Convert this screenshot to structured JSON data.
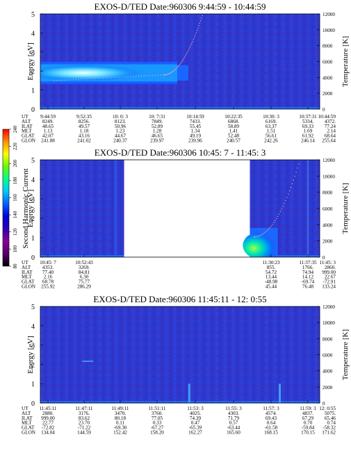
{
  "colorbar": {
    "label": "Second Harmonic Current",
    "ticks": [
      "240",
      "220",
      "200",
      "180",
      "160",
      "140",
      "120",
      "100",
      "80"
    ],
    "colors": [
      "#000000",
      "#55006a",
      "#8a0097",
      "#2a00b8",
      "#0000d8",
      "#0060ff",
      "#00c8ff",
      "#00ff90",
      "#60ff00",
      "#ffff00",
      "#ff9000",
      "#ff0000"
    ]
  },
  "chart_data": [
    {
      "type": "heatmap",
      "title": "EXOS-D/TED   Date:960306  9:44:59 - 10:44:59",
      "ylabel": "Energy [eV]",
      "y2label": "Temperature [K]",
      "ylim": [
        0,
        5
      ],
      "yticks": [
        "0",
        "1",
        "2",
        "3",
        "4",
        "5"
      ],
      "y2lim": [
        0,
        12000
      ],
      "y2ticks": [
        "0",
        "2000",
        "4000",
        "6000",
        "8000",
        "10000",
        "12000"
      ],
      "features": {
        "band_center_ev": 1.9,
        "band_half_width_ev": 0.45,
        "band_end_fraction": 0.49,
        "band_peak_end_fraction": 0.31,
        "temperature_rise_from": 0.44
      },
      "rows": [
        {
          "label": "UT",
          "values": [
            "9:44:59",
            "9:52:35",
            "10: 0: 3",
            "10: 7:31",
            "10:14:59",
            "10:22:35",
            "10:30: 3",
            "10:37:31",
            "10:44:59"
          ]
        },
        {
          "label": "ALT",
          "values": [
            "8249.",
            "8256.",
            "8123.",
            "7849.",
            "7433.",
            "6868.",
            "6169.",
            "5334.",
            "4372."
          ]
        },
        {
          "label": "ILAT",
          "values": [
            "48.65",
            "49.57",
            "50.96",
            "52.89",
            "55.45",
            "58.89",
            "63.37",
            "69.33",
            "77.24"
          ]
        },
        {
          "label": "MLT",
          "values": [
            "1.13",
            "1.18",
            "1.23",
            "1.28",
            "1.34",
            "1.41",
            "1.51",
            "1.69",
            "2.14"
          ]
        },
        {
          "label": "GLAT",
          "values": [
            "42.07",
            "43.16",
            "44.67",
            "46.65",
            "49.19",
            "52.48",
            "56.61",
            "61.92",
            "68.64"
          ]
        },
        {
          "label": "GLON",
          "values": [
            "241.88",
            "241.02",
            "240.37",
            "239.97",
            "239.96",
            "240.57",
            "242.26",
            "246.14",
            "255.64"
          ]
        }
      ]
    },
    {
      "type": "heatmap",
      "title": "EXOS-D/TED   Date:960306  10:45: 7 - 11:45: 3",
      "ylabel": "Energy [eV]",
      "y2label": "Temperature [K]",
      "ylim": [
        0,
        5
      ],
      "yticks": [
        "0",
        "1",
        "2",
        "3",
        "4",
        "5"
      ],
      "y2lim": [
        0,
        12000
      ],
      "y2ticks": [
        "0",
        "2000",
        "4000",
        "6000",
        "8000",
        "10000",
        "12000"
      ],
      "features": {
        "data_gap_start_fraction": 0.3,
        "data_gap_end_fraction": 0.75,
        "spike_fraction": 0.955
      },
      "rows": [
        {
          "label": "UT",
          "values": [
            "10:45: 7",
            "10:52:43",
            "",
            "",
            "",
            "",
            "11:30:23",
            "11:37:35",
            "11:45: 3"
          ]
        },
        {
          "label": "ALT",
          "values": [
            "4353.",
            "3269.",
            "",
            "",
            "",
            "",
            "855.",
            "1766.",
            "2860."
          ]
        },
        {
          "label": "ILAT",
          "values": [
            "77.40",
            "84.81",
            "",
            "",
            "",
            "",
            "54.72",
            "74.94",
            "999.00"
          ]
        },
        {
          "label": "MLT",
          "values": [
            "2.16",
            "6.30",
            "",
            "",
            "",
            "",
            "13.44",
            "14.12",
            "22.67"
          ]
        },
        {
          "label": "GLAT",
          "values": [
            "68.78",
            "75.77",
            "",
            "",
            "",
            "",
            "-48.98",
            "-69.74",
            "-72.91"
          ]
        },
        {
          "label": "GLON",
          "values": [
            "255.92",
            "286.29",
            "",
            "",
            "",
            "",
            "45.44",
            "76.48",
            "133.24"
          ]
        }
      ]
    },
    {
      "type": "heatmap",
      "title": "EXOS-D/TED   Date:960306  11:45:11 - 12: 0:55",
      "ylabel": "Energy [eV]",
      "y2label": "Temperature [K]",
      "ylim": [
        0,
        5
      ],
      "yticks": [
        "0",
        "1",
        "2",
        "3",
        "4",
        "5"
      ],
      "y2lim": [
        0,
        12000
      ],
      "y2ticks": [
        "0",
        "2000",
        "4000",
        "6000",
        "8000",
        "10000",
        "12000"
      ],
      "features": {
        "spike_fractions": [
          0.533,
          0.857
        ]
      },
      "rows": [
        {
          "label": "UT",
          "values": [
            "11:45:11",
            "11:47:11",
            "11:49:11",
            "11:51:11",
            "11:53: 3",
            "11:55: 3",
            "11:57: 3",
            "11:59: 3",
            "12: 0:55"
          ]
        },
        {
          "label": "ALT",
          "values": [
            "2880.",
            "3176.",
            "3470.",
            "3760.",
            "4025.",
            "4303.",
            "4574.",
            "4837.",
            "5075."
          ]
        },
        {
          "label": "ILAT",
          "values": [
            "999.00",
            "83.62",
            "80.18",
            "77.05",
            "74.39",
            "71.79",
            "69.43",
            "67.29",
            "65.46"
          ]
        },
        {
          "label": "MLT",
          "values": [
            "22.77",
            "23.70",
            "0.11",
            "0.33",
            "0.47",
            "0.57",
            "0.64",
            "0.70",
            "0.74"
          ]
        },
        {
          "label": "GLAT",
          "values": [
            "-72.82",
            "-71.22",
            "-69.30",
            "-67.27",
            "-65.39",
            "-63.44",
            "-61.58",
            "-59.84",
            "-58.32"
          ]
        },
        {
          "label": "GLON",
          "values": [
            "134.04",
            "144.59",
            "152.42",
            "158.20",
            "162.27",
            "165.60",
            "168.15",
            "170.15",
            "171.62"
          ]
        }
      ]
    }
  ]
}
